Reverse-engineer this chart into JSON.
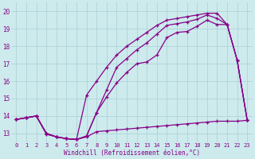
{
  "xlabel": "Windchill (Refroidissement éolien,°C)",
  "bg_color": "#cdeaed",
  "line_color": "#880088",
  "grid_color": "#aed4d8",
  "xlim": [
    -0.5,
    23.5
  ],
  "ylim": [
    12.5,
    20.5
  ],
  "xticks": [
    0,
    1,
    2,
    3,
    4,
    5,
    6,
    7,
    8,
    9,
    10,
    11,
    12,
    13,
    14,
    15,
    16,
    17,
    18,
    19,
    20,
    21,
    22,
    23
  ],
  "yticks": [
    13,
    14,
    15,
    16,
    17,
    18,
    19,
    20
  ],
  "line1_x": [
    0,
    1,
    2,
    3,
    4,
    5,
    6,
    7,
    8,
    9,
    10,
    11,
    12,
    13,
    14,
    15,
    16,
    17,
    18,
    19,
    20,
    21,
    22,
    23
  ],
  "line1_y": [
    13.8,
    13.9,
    14.0,
    12.95,
    12.8,
    12.7,
    12.65,
    12.8,
    13.1,
    13.15,
    13.2,
    13.25,
    13.3,
    13.35,
    13.4,
    13.45,
    13.5,
    13.55,
    13.6,
    13.65,
    13.7,
    13.7,
    13.7,
    13.75
  ],
  "line2_x": [
    0,
    1,
    2,
    3,
    4,
    5,
    6,
    7,
    8,
    9,
    10,
    11,
    12,
    13,
    14,
    15,
    16,
    17,
    18,
    19,
    20,
    21,
    22,
    23
  ],
  "line2_y": [
    13.8,
    13.9,
    14.0,
    13.0,
    12.8,
    12.7,
    12.65,
    12.85,
    14.2,
    15.1,
    15.9,
    16.5,
    17.0,
    17.1,
    17.5,
    18.5,
    18.8,
    18.85,
    19.15,
    19.5,
    19.25,
    19.25,
    17.2,
    13.75
  ],
  "line3_x": [
    0,
    1,
    2,
    3,
    4,
    5,
    6,
    7,
    8,
    9,
    10,
    11,
    12,
    13,
    14,
    15,
    16,
    17,
    18,
    19,
    20,
    21,
    22,
    23
  ],
  "line3_y": [
    13.8,
    13.9,
    14.0,
    13.0,
    12.8,
    12.7,
    12.65,
    12.85,
    14.2,
    15.5,
    16.8,
    17.3,
    17.8,
    18.2,
    18.7,
    19.2,
    19.3,
    19.4,
    19.55,
    19.8,
    19.6,
    19.25,
    17.2,
    13.75
  ],
  "line4_x": [
    0,
    1,
    2,
    3,
    4,
    5,
    6,
    7,
    8,
    9,
    10,
    11,
    12,
    13,
    14,
    15,
    16,
    17,
    18,
    19,
    20,
    21,
    22,
    23
  ],
  "line4_y": [
    13.8,
    13.9,
    14.0,
    13.0,
    12.8,
    12.7,
    12.65,
    15.2,
    16.0,
    16.8,
    17.5,
    18.0,
    18.4,
    18.8,
    19.2,
    19.5,
    19.6,
    19.7,
    19.8,
    19.9,
    19.9,
    19.25,
    17.2,
    13.75
  ]
}
